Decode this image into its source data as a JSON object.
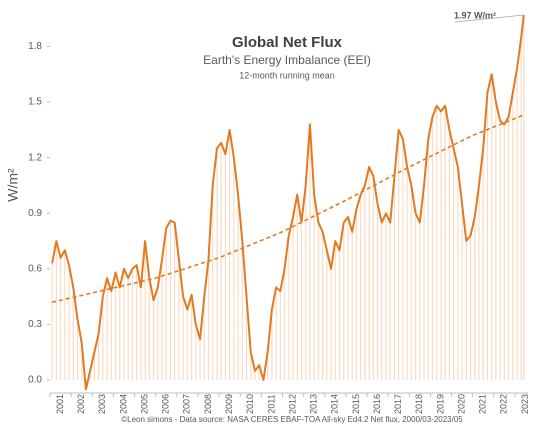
{
  "chart_data": {
    "type": "line",
    "title": "Global Net Flux",
    "subtitle": "Earth's Energy Imbalance (EEI)",
    "note": "12-month running mean",
    "y_label": "W/m²",
    "source": "©Leon simons - Data source: NASA CERES EBAF-TOA All-sky Ed4.2 Net flux, 2000/03-2023/05",
    "annotation": "1.97 W/m²",
    "x": [
      2001.1,
      2001.3,
      2001.5,
      2001.7,
      2001.9,
      2002.1,
      2002.3,
      2002.5,
      2002.7,
      2002.9,
      2003.1,
      2003.3,
      2003.5,
      2003.7,
      2003.9,
      2004.1,
      2004.3,
      2004.5,
      2004.7,
      2004.9,
      2005.1,
      2005.3,
      2005.5,
      2005.7,
      2005.9,
      2006.1,
      2006.3,
      2006.5,
      2006.7,
      2006.9,
      2007.1,
      2007.3,
      2007.5,
      2007.7,
      2007.9,
      2008.1,
      2008.3,
      2008.5,
      2008.7,
      2008.9,
      2009.1,
      2009.3,
      2009.5,
      2009.7,
      2009.9,
      2010.1,
      2010.3,
      2010.5,
      2010.7,
      2010.9,
      2011.1,
      2011.3,
      2011.5,
      2011.7,
      2011.9,
      2012.1,
      2012.3,
      2012.5,
      2012.7,
      2012.9,
      2013.1,
      2013.3,
      2013.5,
      2013.7,
      2013.9,
      2014.1,
      2014.3,
      2014.5,
      2014.7,
      2014.9,
      2015.1,
      2015.3,
      2015.5,
      2015.7,
      2015.9,
      2016.1,
      2016.3,
      2016.5,
      2016.7,
      2016.9,
      2017.1,
      2017.3,
      2017.5,
      2017.7,
      2017.9,
      2018.1,
      2018.3,
      2018.5,
      2018.7,
      2018.9,
      2019.1,
      2019.3,
      2019.5,
      2019.7,
      2019.9,
      2020.1,
      2020.3,
      2020.5,
      2020.7,
      2020.9,
      2021.1,
      2021.3,
      2021.5,
      2021.7,
      2021.9,
      2022.1,
      2022.3,
      2022.5,
      2022.7,
      2022.9,
      2023.1,
      2023.3,
      2023.42
    ],
    "series": [
      {
        "color": "#e37a21",
        "values": [
          0.63,
          0.75,
          0.66,
          0.7,
          0.62,
          0.5,
          0.33,
          0.2,
          -0.05,
          0.05,
          0.15,
          0.25,
          0.45,
          0.55,
          0.48,
          0.58,
          0.5,
          0.6,
          0.55,
          0.6,
          0.62,
          0.5,
          0.75,
          0.55,
          0.43,
          0.5,
          0.65,
          0.82,
          0.86,
          0.85,
          0.65,
          0.45,
          0.38,
          0.46,
          0.3,
          0.22,
          0.45,
          0.65,
          1.05,
          1.25,
          1.28,
          1.22,
          1.35,
          1.2,
          1.0,
          0.75,
          0.45,
          0.15,
          0.05,
          0.08,
          0.0,
          0.15,
          0.38,
          0.5,
          0.48,
          0.6,
          0.78,
          0.88,
          1.0,
          0.85,
          1.05,
          1.38,
          1.0,
          0.85,
          0.8,
          0.7,
          0.6,
          0.75,
          0.7,
          0.85,
          0.88,
          0.8,
          0.92,
          1.0,
          1.05,
          1.15,
          1.1,
          0.95,
          0.85,
          0.9,
          0.85,
          1.1,
          1.35,
          1.3,
          1.15,
          1.05,
          0.9,
          0.85,
          1.05,
          1.3,
          1.42,
          1.48,
          1.45,
          1.48,
          1.35,
          1.25,
          1.15,
          0.95,
          0.75,
          0.78,
          0.88,
          1.05,
          1.25,
          1.55,
          1.65,
          1.5,
          1.4,
          1.38,
          1.42,
          1.55,
          1.68,
          1.85,
          1.97
        ]
      }
    ],
    "bar_color": "#fadcc4",
    "trend": {
      "color": "#e37a21",
      "x": [
        2001.1,
        2003,
        2006,
        2009,
        2012,
        2015,
        2018,
        2021,
        2023.42
      ],
      "values": [
        0.42,
        0.47,
        0.55,
        0.66,
        0.8,
        0.97,
        1.15,
        1.32,
        1.43
      ]
    },
    "xlim": [
      2001,
      2023.62
    ],
    "xticks": [
      {
        "value": 2001.5,
        "label": "2001"
      },
      {
        "value": 2002.5,
        "label": "2002"
      },
      {
        "value": 2003.5,
        "label": "2003"
      },
      {
        "value": 2004.5,
        "label": "2004"
      },
      {
        "value": 2005.5,
        "label": "2005"
      },
      {
        "value": 2006.5,
        "label": "2006"
      },
      {
        "value": 2007.5,
        "label": "2007"
      },
      {
        "value": 2008.5,
        "label": "2008"
      },
      {
        "value": 2009.5,
        "label": "2009"
      },
      {
        "value": 2010.5,
        "label": "2010"
      },
      {
        "value": 2011.5,
        "label": "2011"
      },
      {
        "value": 2012.5,
        "label": "2012"
      },
      {
        "value": 2013.5,
        "label": "2013"
      },
      {
        "value": 2014.5,
        "label": "2014"
      },
      {
        "value": 2015.5,
        "label": "2015"
      },
      {
        "value": 2016.5,
        "label": "2016"
      },
      {
        "value": 2017.5,
        "label": "2017"
      },
      {
        "value": 2018.5,
        "label": "2018"
      },
      {
        "value": 2019.5,
        "label": "2019"
      },
      {
        "value": 2020.5,
        "label": "2020"
      },
      {
        "value": 2021.5,
        "label": "2021"
      },
      {
        "value": 2022.5,
        "label": "2022"
      },
      {
        "value": 2023.5,
        "label": "2023"
      }
    ],
    "ylim": [
      -0.07,
      1.97
    ],
    "yticks": [
      {
        "value": 0,
        "label": "0.0"
      },
      0.3,
      0.6,
      0.9,
      1.2,
      1.5,
      1.8
    ]
  }
}
